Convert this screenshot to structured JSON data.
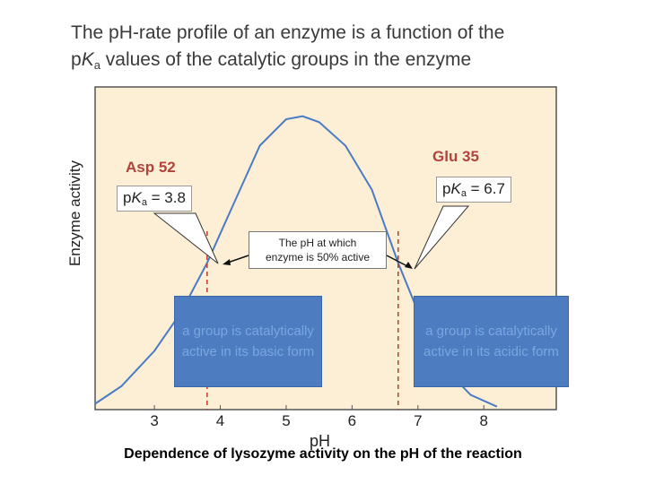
{
  "title": {
    "line1": "The pH-rate profile of an enzyme is a function of the",
    "line2_pre": "p",
    "line2_k": "K",
    "line2_sub": "a",
    "line2_post": " values of the catalytic groups in the enzyme"
  },
  "groups": {
    "left_name": "Asp 52",
    "right_name": "Glu 35",
    "left_pka_pre": "p",
    "left_pka_k": "K",
    "left_pka_sub": "a",
    "left_pka_val": " = 3.8",
    "right_pka_pre": "p",
    "right_pka_k": "K",
    "right_pka_sub": "a",
    "right_pka_val": " = 6.7"
  },
  "half_active_note": {
    "line1": "The pH at which",
    "line2": "enzyme is 50% active"
  },
  "callouts": {
    "left": "a group is catalytically active in its basic form",
    "right": "a group is catalytically active in its acidic form"
  },
  "caption": "Dependence of lysozyme activity on the pH of the reaction",
  "chart_data": {
    "type": "line",
    "xlabel": "pH",
    "ylabel": "Enzyme activity",
    "xticks": [
      "3",
      "4",
      "5",
      "6",
      "7",
      "8"
    ],
    "xlim": [
      2.1,
      9.1
    ],
    "ylim": [
      0,
      1.1
    ],
    "series": [
      {
        "values_x": [
          2.1,
          2.5,
          3.0,
          3.4,
          3.8,
          4.2,
          4.6,
          5.0,
          5.25,
          5.5,
          5.9,
          6.3,
          6.7,
          7.1,
          7.5,
          7.8,
          8.2
        ],
        "values_y": [
          0.02,
          0.08,
          0.2,
          0.33,
          0.5,
          0.7,
          0.9,
          0.99,
          1.0,
          0.98,
          0.9,
          0.75,
          0.5,
          0.28,
          0.12,
          0.05,
          0.01
        ]
      }
    ],
    "reference_lines_x": [
      3.8,
      6.7
    ],
    "colors": {
      "plot_bg": "#fcefd5",
      "curve": "#4a7bc4",
      "ref_line": "#c0392b",
      "callout_bg": "#4d7cc1",
      "group_label": "#b0443c"
    }
  }
}
